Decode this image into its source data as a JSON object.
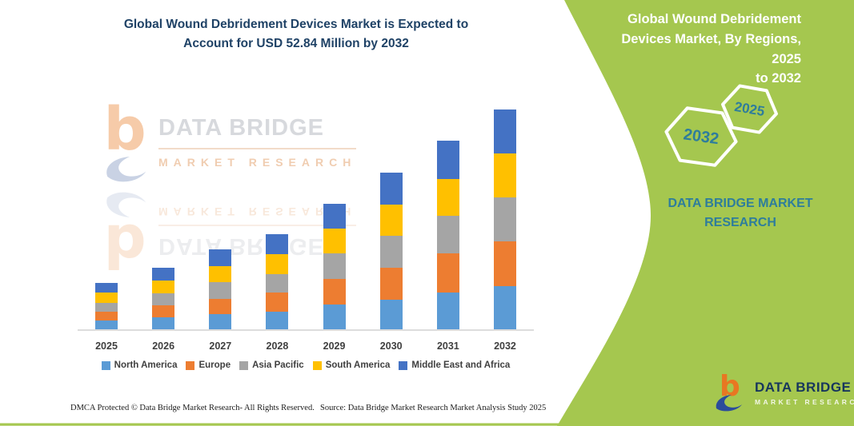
{
  "chart": {
    "title_lines": [
      "Global Wound Debridement Devices Market is Expected to",
      "Account for USD 52.84 Million by 2032"
    ]
  },
  "chart_data": {
    "type": "bar",
    "stacked": true,
    "title": "Global Wound Debridement Devices Market is Expected to Account for USD 52.84 Million by 2032",
    "unit": "USD Million (values estimated from bar heights; 2032 total = 52.84)",
    "categories": [
      "2025",
      "2026",
      "2027",
      "2028",
      "2029",
      "2030",
      "2031",
      "2032"
    ],
    "series": [
      {
        "name": "North America",
        "color": "#5B9BD5",
        "values": [
          2.2,
          2.8,
          3.7,
          4.3,
          6.0,
          7.2,
          8.8,
          10.3
        ]
      },
      {
        "name": "Europe",
        "color": "#ED7D31",
        "values": [
          2.1,
          3.0,
          3.7,
          4.5,
          6.1,
          7.7,
          9.4,
          10.9
        ]
      },
      {
        "name": "Asia Pacific",
        "color": "#A5A5A5",
        "values": [
          2.1,
          2.8,
          3.9,
          4.5,
          6.1,
          7.6,
          9.2,
          10.5
        ]
      },
      {
        "name": "South America",
        "color": "#FFC000",
        "values": [
          2.4,
          3.2,
          4.0,
          4.8,
          6.1,
          7.6,
          8.8,
          10.7
        ]
      },
      {
        "name": "Middle East and Africa",
        "color": "#4472C4",
        "values": [
          2.3,
          3.1,
          3.9,
          4.7,
          6.0,
          7.7,
          9.2,
          10.5
        ]
      }
    ],
    "totals": [
      11.1,
      14.9,
      19.2,
      22.8,
      30.3,
      37.8,
      45.4,
      52.9
    ],
    "xlabel": "",
    "ylabel": "",
    "ylim": [
      0,
      55
    ],
    "gridlines": false,
    "legend_position": "bottom"
  },
  "watermark": {
    "line1": "DATA BRIDGE",
    "line2": "MARKET RESEARCH"
  },
  "side_panel": {
    "heading_lines": [
      "Global Wound Debridement",
      "Devices Market, By Regions, 2025",
      "to 2032"
    ],
    "hexagon_back_label": "2032",
    "hexagon_front_label": "2025",
    "brand_lines": [
      "DATA BRIDGE MARKET",
      "RESEARCH"
    ],
    "panel_color": "#A5C74F",
    "text_teal": "#2E7D9C"
  },
  "footer": {
    "dmca": "DMCA Protected © Data Bridge Market Research-  All Rights Reserved.",
    "source": "Source: Data Bridge Market Research  Market Analysis Study 2025"
  },
  "logo": {
    "name": "DATA BRIDGE",
    "sub": "MARKET RESEARCH"
  }
}
